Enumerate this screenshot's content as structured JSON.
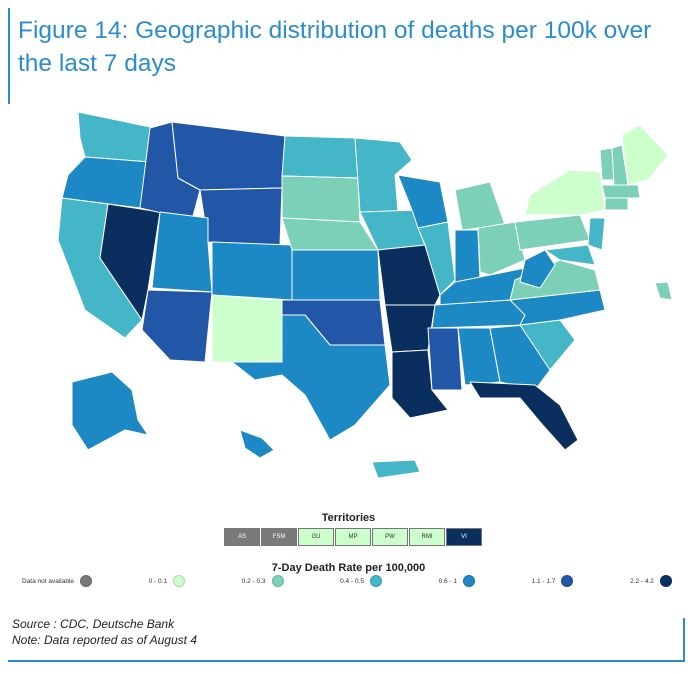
{
  "title": "Figure 14: Geographic distribution of deaths per 100k over the last 7 days",
  "territories": {
    "label": "Territories",
    "items": [
      {
        "code": "AS",
        "color": "#7a7a7a"
      },
      {
        "code": "FSM",
        "color": "#7a7a7a"
      },
      {
        "code": "GU",
        "color": "#ccffcc"
      },
      {
        "code": "MP",
        "color": "#ccffcc"
      },
      {
        "code": "PW",
        "color": "#ccffcc"
      },
      {
        "code": "RMI",
        "color": "#ccffcc"
      },
      {
        "code": "VI",
        "color": "#0a2f5e"
      }
    ]
  },
  "legend": {
    "title": "7-Day Death Rate per 100,000",
    "items": [
      {
        "label": "Data not available",
        "color": "#7a7a7a"
      },
      {
        "label": "0 - 0.1",
        "color": "#ccffcc"
      },
      {
        "label": "0.2 - 0.3",
        "color": "#7dd0b8"
      },
      {
        "label": "0.4 - 0.5",
        "color": "#45b5c8"
      },
      {
        "label": "0.6 - 1",
        "color": "#1c88c4"
      },
      {
        "label": "1.1 - 1.7",
        "color": "#2157a6"
      },
      {
        "label": "2.2 - 4.2",
        "color": "#0a2f5e"
      }
    ]
  },
  "source": "Source : CDC, Deutsche Bank",
  "note": "Note: Data reported as of August 4",
  "map": {
    "colors": {
      "c0": "#ccffcc",
      "c1": "#7dd0b8",
      "c2": "#45b5c8",
      "c3": "#1c88c4",
      "c4": "#2157a6",
      "c5": "#0a2f5e"
    }
  }
}
